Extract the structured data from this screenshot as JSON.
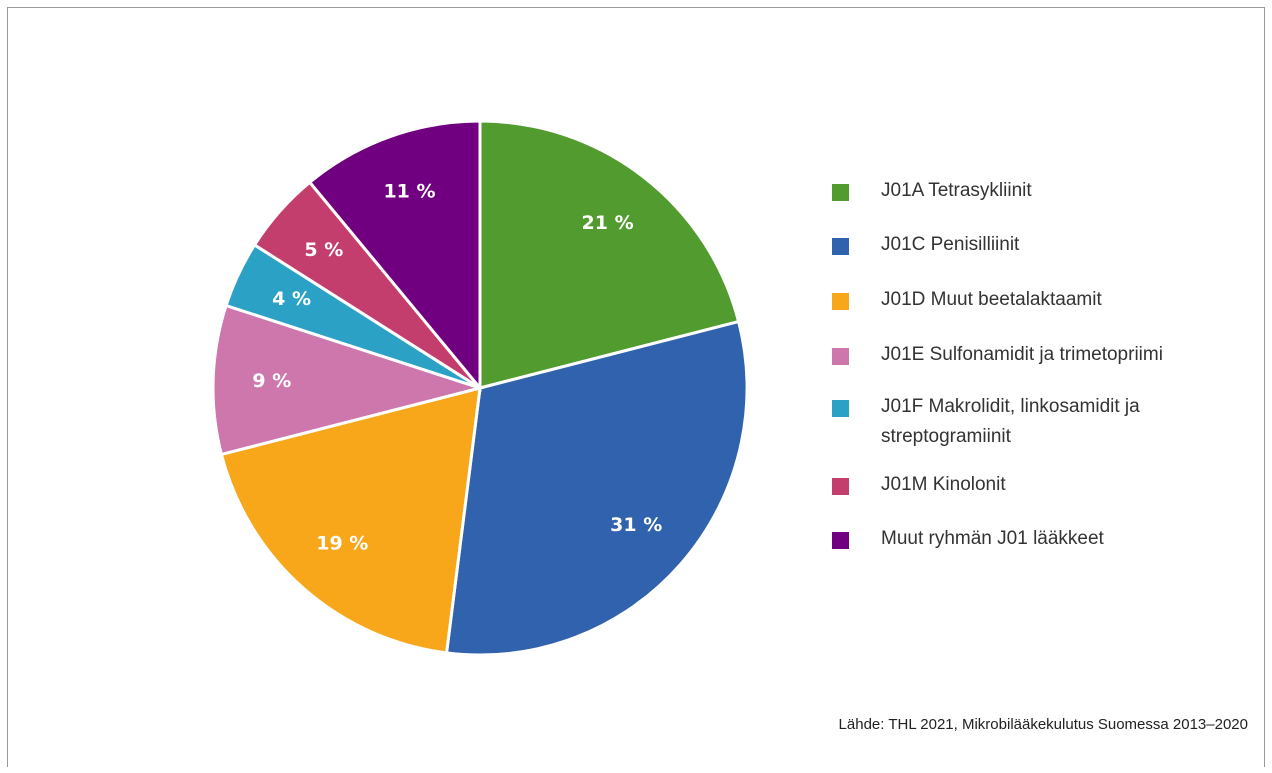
{
  "chart_data": {
    "type": "pie",
    "slices": [
      {
        "label": "J01A Tetrasykliinit",
        "value": 21,
        "value_label": "21 %",
        "color": "#529b2f"
      },
      {
        "label": "J01C Penisilliinit",
        "value": 31,
        "value_label": "31 %",
        "color": "#3062ad"
      },
      {
        "label": "J01D Muut beetalaktaamit",
        "value": 19,
        "value_label": "19 %",
        "color": "#f8a71b"
      },
      {
        "label": "J01E Sulfonamidit ja trimetopriimi",
        "value": 9,
        "value_label": "9 %",
        "color": "#cd77ad"
      },
      {
        "label": "J01F Makrolidit, linkosamidit ja streptogramiinit",
        "value": 4,
        "value_label": "4 %",
        "color": "#2ba1c6"
      },
      {
        "label": "J01M Kinolonit",
        "value": 5,
        "value_label": "5 %",
        "color": "#c43e6d"
      },
      {
        "label": "Muut ryhmän J01 lääkkeet",
        "value": 11,
        "value_label": "11 %",
        "color": "#700080"
      }
    ],
    "legend": {
      "position": "right",
      "items": [
        "J01A Tetrasykliinit",
        "J01C Penisilliinit",
        "J01D Muut beetalaktaamit",
        "J01E Sulfonamidit ja trimetopriimi",
        "J01F Makrolidit, linkosamidit ja streptogramiinit",
        "J01M Kinolonit",
        "Muut ryhmän J01 lääkkeet"
      ]
    },
    "start_angle": "12 o'clock",
    "direction": "clockwise"
  },
  "source_note": "Lähde: THL 2021, Mikrobilääkekulutus Suomessa 2013–2020"
}
